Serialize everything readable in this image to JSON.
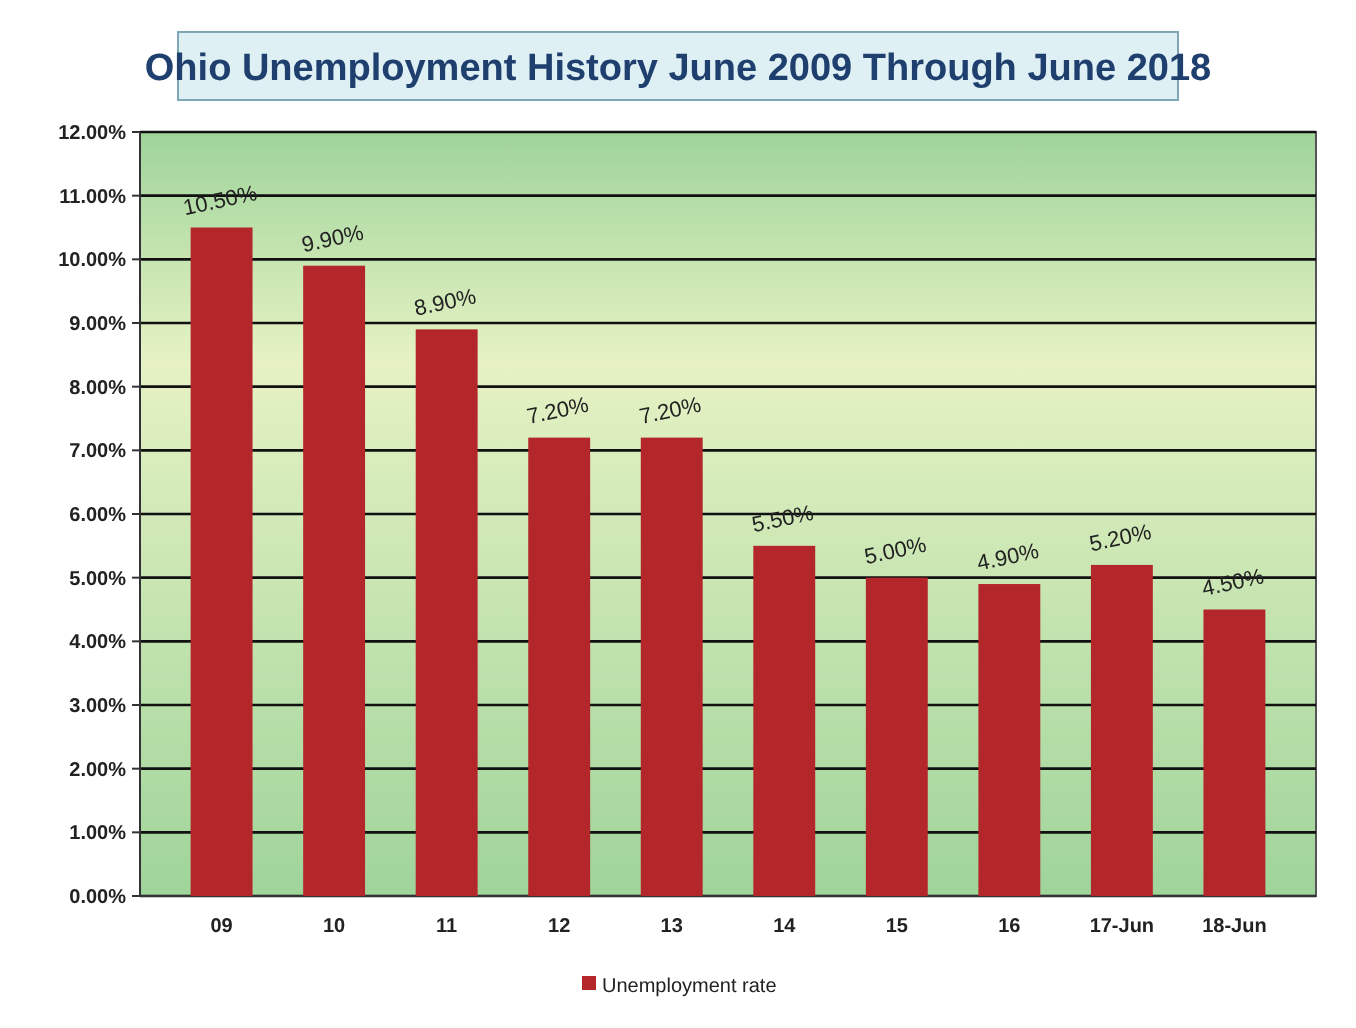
{
  "chart_data": {
    "type": "bar",
    "title": "Ohio Unemployment History June 2009 Through June 2018",
    "categories": [
      "09",
      "10",
      "11",
      "12",
      "13",
      "14",
      "15",
      "16",
      "17-Jun",
      "18-Jun"
    ],
    "series": [
      {
        "name": "Unemployment rate",
        "color": "#b3262a",
        "values": [
          10.5,
          9.9,
          8.9,
          7.2,
          7.2,
          5.5,
          5.0,
          4.9,
          5.2,
          4.5
        ],
        "value_labels": [
          "10.50%",
          "9.90%",
          "8.90%",
          "7.20%",
          "7.20%",
          "5.50%",
          "5.00%",
          "4.90%",
          "5.20%",
          "4.50%"
        ]
      }
    ],
    "ylim": [
      0,
      12
    ],
    "yticks": [
      {
        "value": 0,
        "label": "0.00%"
      },
      {
        "value": 1,
        "label": "1.00%"
      },
      {
        "value": 2,
        "label": "2.00%"
      },
      {
        "value": 3,
        "label": "3.00%"
      },
      {
        "value": 4,
        "label": "4.00%"
      },
      {
        "value": 5,
        "label": "5.00%"
      },
      {
        "value": 6,
        "label": "6.00%"
      },
      {
        "value": 7,
        "label": "7.00%"
      },
      {
        "value": 8,
        "label": "8.00%"
      },
      {
        "value": 9,
        "label": "9.00%"
      },
      {
        "value": 10,
        "label": "10.00%"
      },
      {
        "value": 11,
        "label": "11.00%"
      },
      {
        "value": 12,
        "label": "12.00%"
      }
    ],
    "grid": "y",
    "legend": "bottom"
  }
}
